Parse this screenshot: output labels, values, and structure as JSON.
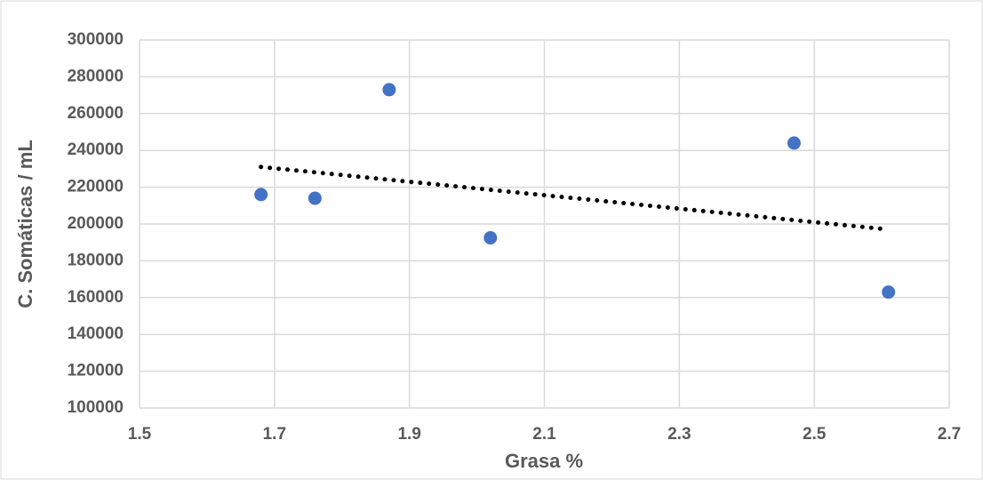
{
  "chart_data": {
    "type": "scatter",
    "x_label": "Grasa %",
    "y_label": "C. Somáticas / mL",
    "series": [
      {
        "color": "#4472c4",
        "x": [
          1.68,
          1.76,
          1.87,
          2.02,
          2.47,
          2.61
        ],
        "values": [
          216000,
          214000,
          273000,
          192500,
          244000,
          163000
        ]
      }
    ],
    "trendline": {
      "color": "#000000",
      "style": "dotted",
      "x": [
        1.68,
        2.61
      ],
      "values": [
        231000,
        197000
      ]
    },
    "xlim": [
      1.5,
      2.7
    ],
    "xticks": [
      1.5,
      1.7,
      1.9,
      2.1,
      2.3,
      2.5,
      2.7
    ],
    "ylim": [
      100000,
      300000
    ],
    "yticks": [
      100000,
      120000,
      140000,
      160000,
      180000,
      200000,
      220000,
      240000,
      260000,
      280000,
      300000
    ],
    "grid": true
  }
}
